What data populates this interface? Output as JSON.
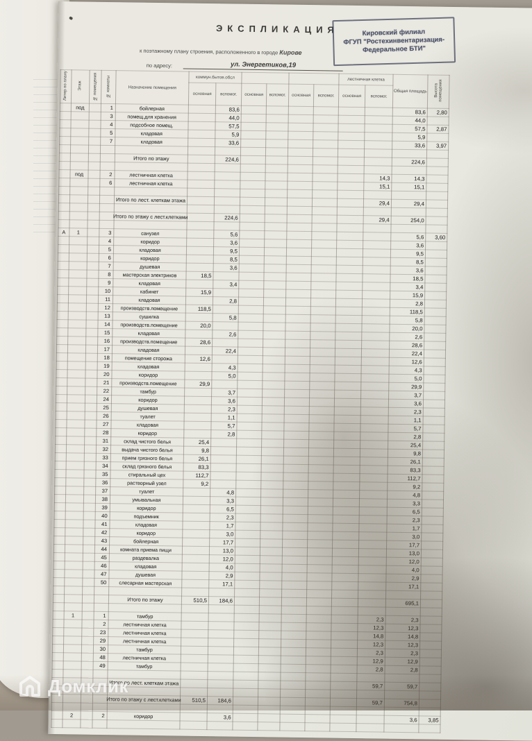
{
  "header": {
    "title": "ЭКСПЛИКАЦИЯ",
    "stamp": {
      "line1": "Кировский филиал",
      "line2": "ФГУП \"Ростехинвентаризация-",
      "line3": "Федеральное БТИ\""
    },
    "subtitle_prefix": "к поэтажному плану строения, расположенного в городе",
    "subtitle_city": "Кирове",
    "address_label": "по адресу:",
    "address_value": "ул. Энергетиков,19"
  },
  "watermark": {
    "label": "Домклик",
    "icon": "house-logo-icon"
  },
  "table": {
    "col_headers": {
      "liter": "Литер по плану",
      "floor": "Этаж",
      "room_no": "№ помещения",
      "unit_no": "№ комнаты",
      "purpose": "Назначение помещения",
      "group1": "коммун.бытов.обсл",
      "group2": "",
      "group3": "",
      "group4": "лестничная клетка",
      "main": "основная",
      "aux": "вспомог.",
      "total": "Общая площадь",
      "height": "Высота помещения"
    },
    "rows": [
      [
        "",
        "под",
        "",
        "1",
        "бойлерная",
        "",
        "83,6",
        "",
        "",
        "",
        "",
        "",
        "",
        "83,6",
        "2,80"
      ],
      [
        "",
        "",
        "",
        "3",
        "помещ.для хранения",
        "",
        "44,0",
        "",
        "",
        "",
        "",
        "",
        "",
        "44,0",
        ""
      ],
      [
        "",
        "",
        "",
        "4",
        "подсобное помещ.",
        "",
        "57,5",
        "",
        "",
        "",
        "",
        "",
        "",
        "57,5",
        "2,87"
      ],
      [
        "",
        "",
        "",
        "5",
        "кладовая",
        "",
        "5,9",
        "",
        "",
        "",
        "",
        "",
        "",
        "5,9",
        ""
      ],
      [
        "",
        "",
        "",
        "7",
        "кладовая",
        "",
        "33,6",
        "",
        "",
        "",
        "",
        "",
        "",
        "33,6",
        "3,97"
      ],
      [],
      [
        "",
        "",
        "",
        "",
        "Итого по этажу",
        "",
        "224,6",
        "",
        "",
        "",
        "",
        "",
        "",
        "224,6",
        ""
      ],
      [],
      [
        "",
        "под",
        "",
        "2",
        "лестничная клетка",
        "",
        "",
        "",
        "",
        "",
        "",
        "",
        "14,3",
        "14,3",
        ""
      ],
      [
        "",
        "",
        "",
        "6",
        "лестничная клетка",
        "",
        "",
        "",
        "",
        "",
        "",
        "",
        "15,1",
        "15,1",
        ""
      ],
      [],
      [
        "",
        "",
        "",
        "",
        "Итого по лест. клеткам этажа",
        "",
        "",
        "",
        "",
        "",
        "",
        "",
        "29,4",
        "29,4",
        ""
      ],
      [],
      [
        "",
        "",
        "",
        "",
        "Итого по этажу с лест.клетками",
        "",
        "224,6",
        "",
        "",
        "",
        "",
        "",
        "29,4",
        "254,0",
        ""
      ],
      [],
      [
        "А",
        "1",
        "",
        "3",
        "санузел",
        "",
        "5,6",
        "",
        "",
        "",
        "",
        "",
        "",
        "5,6",
        "3,60"
      ],
      [
        "",
        "",
        "",
        "4",
        "коридор",
        "",
        "3,6",
        "",
        "",
        "",
        "",
        "",
        "",
        "3,6",
        ""
      ],
      [
        "",
        "",
        "",
        "5",
        "кладовая",
        "",
        "9,5",
        "",
        "",
        "",
        "",
        "",
        "",
        "9,5",
        ""
      ],
      [
        "",
        "",
        "",
        "6",
        "коридор",
        "",
        "8,5",
        "",
        "",
        "",
        "",
        "",
        "",
        "8,5",
        ""
      ],
      [
        "",
        "",
        "",
        "7",
        "душевая",
        "",
        "3,6",
        "",
        "",
        "",
        "",
        "",
        "",
        "3,6",
        ""
      ],
      [
        "",
        "",
        "",
        "8",
        "мастерская электриков",
        "18,5",
        "",
        "",
        "",
        "",
        "",
        "",
        "",
        "18,5",
        ""
      ],
      [
        "",
        "",
        "",
        "9",
        "кладовая",
        "",
        "3,4",
        "",
        "",
        "",
        "",
        "",
        "",
        "3,4",
        ""
      ],
      [
        "",
        "",
        "",
        "10",
        "кабинет",
        "15,9",
        "",
        "",
        "",
        "",
        "",
        "",
        "",
        "15,9",
        ""
      ],
      [
        "",
        "",
        "",
        "11",
        "кладовая",
        "",
        "2,8",
        "",
        "",
        "",
        "",
        "",
        "",
        "2,8",
        ""
      ],
      [
        "",
        "",
        "",
        "12",
        "производств.помещение",
        "118,5",
        "",
        "",
        "",
        "",
        "",
        "",
        "",
        "118,5",
        ""
      ],
      [
        "",
        "",
        "",
        "13",
        "сушилка",
        "",
        "5,8",
        "",
        "",
        "",
        "",
        "",
        "",
        "5,8",
        ""
      ],
      [
        "",
        "",
        "",
        "14",
        "производств.помещение",
        "20,0",
        "",
        "",
        "",
        "",
        "",
        "",
        "",
        "20,0",
        ""
      ],
      [
        "",
        "",
        "",
        "15",
        "кладовая",
        "",
        "2,6",
        "",
        "",
        "",
        "",
        "",
        "",
        "2,6",
        ""
      ],
      [
        "",
        "",
        "",
        "16",
        "производств.помещение",
        "28,6",
        "",
        "",
        "",
        "",
        "",
        "",
        "",
        "28,6",
        ""
      ],
      [
        "",
        "",
        "",
        "17",
        "кладовая",
        "",
        "22,4",
        "",
        "",
        "",
        "",
        "",
        "",
        "22,4",
        ""
      ],
      [
        "",
        "",
        "",
        "18",
        "помещение сторожа",
        "12,6",
        "",
        "",
        "",
        "",
        "",
        "",
        "",
        "12,6",
        ""
      ],
      [
        "",
        "",
        "",
        "19",
        "кладовая",
        "",
        "4,3",
        "",
        "",
        "",
        "",
        "",
        "",
        "4,3",
        ""
      ],
      [
        "",
        "",
        "",
        "20",
        "коридор",
        "",
        "5,0",
        "",
        "",
        "",
        "",
        "",
        "",
        "5,0",
        ""
      ],
      [
        "",
        "",
        "",
        "21",
        "производств.помещение",
        "29,9",
        "",
        "",
        "",
        "",
        "",
        "",
        "",
        "29,9",
        ""
      ],
      [
        "",
        "",
        "",
        "22",
        "тамбур",
        "",
        "3,7",
        "",
        "",
        "",
        "",
        "",
        "",
        "3,7",
        ""
      ],
      [
        "",
        "",
        "",
        "24",
        "коридор",
        "",
        "3,6",
        "",
        "",
        "",
        "",
        "",
        "",
        "3,6",
        ""
      ],
      [
        "",
        "",
        "",
        "25",
        "душевая",
        "",
        "2,3",
        "",
        "",
        "",
        "",
        "",
        "",
        "2,3",
        ""
      ],
      [
        "",
        "",
        "",
        "26",
        "туалет",
        "",
        "1,1",
        "",
        "",
        "",
        "",
        "",
        "",
        "1,1",
        ""
      ],
      [
        "",
        "",
        "",
        "27",
        "кладовая",
        "",
        "5,7",
        "",
        "",
        "",
        "",
        "",
        "",
        "5,7",
        ""
      ],
      [
        "",
        "",
        "",
        "28",
        "коридор",
        "",
        "2,8",
        "",
        "",
        "",
        "",
        "",
        "",
        "2,8",
        ""
      ],
      [
        "",
        "",
        "",
        "31",
        "склад чистого белья",
        "25,4",
        "",
        "",
        "",
        "",
        "",
        "",
        "",
        "25,4",
        ""
      ],
      [
        "",
        "",
        "",
        "32",
        "выдача чистого белья",
        "9,8",
        "",
        "",
        "",
        "",
        "",
        "",
        "",
        "9,8",
        ""
      ],
      [
        "",
        "",
        "",
        "33",
        "прием грязного белья",
        "26,1",
        "",
        "",
        "",
        "",
        "",
        "",
        "",
        "26,1",
        ""
      ],
      [
        "",
        "",
        "",
        "34",
        "склад грязного белья",
        "83,3",
        "",
        "",
        "",
        "",
        "",
        "",
        "",
        "83,3",
        ""
      ],
      [
        "",
        "",
        "",
        "35",
        "стиральный цех",
        "112,7",
        "",
        "",
        "",
        "",
        "",
        "",
        "",
        "112,7",
        ""
      ],
      [
        "",
        "",
        "",
        "36",
        "растворный узел",
        "9,2",
        "",
        "",
        "",
        "",
        "",
        "",
        "",
        "9,2",
        ""
      ],
      [
        "",
        "",
        "",
        "37",
        "туалет",
        "",
        "4,8",
        "",
        "",
        "",
        "",
        "",
        "",
        "4,8",
        ""
      ],
      [
        "",
        "",
        "",
        "38",
        "умывальная",
        "",
        "3,3",
        "",
        "",
        "",
        "",
        "",
        "",
        "3,3",
        ""
      ],
      [
        "",
        "",
        "",
        "39",
        "коридор",
        "",
        "6,5",
        "",
        "",
        "",
        "",
        "",
        "",
        "6,5",
        ""
      ],
      [
        "",
        "",
        "",
        "40",
        "подъемник",
        "",
        "2,3",
        "",
        "",
        "",
        "",
        "",
        "",
        "2,3",
        ""
      ],
      [
        "",
        "",
        "",
        "41",
        "кладовая",
        "",
        "1,7",
        "",
        "",
        "",
        "",
        "",
        "",
        "1,7",
        ""
      ],
      [
        "",
        "",
        "",
        "42",
        "коридор",
        "",
        "3,0",
        "",
        "",
        "",
        "",
        "",
        "",
        "3,0",
        ""
      ],
      [
        "",
        "",
        "",
        "43",
        "бойлерная",
        "",
        "17,7",
        "",
        "",
        "",
        "",
        "",
        "",
        "17,7",
        ""
      ],
      [
        "",
        "",
        "",
        "44",
        "комната приема пищи",
        "",
        "13,0",
        "",
        "",
        "",
        "",
        "",
        "",
        "13,0",
        ""
      ],
      [
        "",
        "",
        "",
        "45",
        "раздевалка",
        "",
        "12,0",
        "",
        "",
        "",
        "",
        "",
        "",
        "12,0",
        ""
      ],
      [
        "",
        "",
        "",
        "46",
        "кладовая",
        "",
        "4,0",
        "",
        "",
        "",
        "",
        "",
        "",
        "4,0",
        ""
      ],
      [
        "",
        "",
        "",
        "47",
        "душевая",
        "",
        "2,9",
        "",
        "",
        "",
        "",
        "",
        "",
        "2,9",
        ""
      ],
      [
        "",
        "",
        "",
        "50",
        "слесарная мастерская",
        "",
        "17,1",
        "",
        "",
        "",
        "",
        "",
        "",
        "17,1",
        ""
      ],
      [],
      [
        "",
        "",
        "",
        "",
        "Итого по этажу",
        "510,5",
        "184,6",
        "",
        "",
        "",
        "",
        "",
        "",
        "695,1",
        ""
      ],
      [],
      [
        "",
        "1",
        "",
        "1",
        "тамбур",
        "",
        "",
        "",
        "",
        "",
        "",
        "",
        "2,3",
        "2,3",
        ""
      ],
      [
        "",
        "",
        "",
        "2",
        "лестничная клетка",
        "",
        "",
        "",
        "",
        "",
        "",
        "",
        "12,3",
        "12,3",
        ""
      ],
      [
        "",
        "",
        "",
        "23",
        "лестничная клетка",
        "",
        "",
        "",
        "",
        "",
        "",
        "",
        "14,8",
        "14,8",
        ""
      ],
      [
        "",
        "",
        "",
        "29",
        "лестничная клетка",
        "",
        "",
        "",
        "",
        "",
        "",
        "",
        "12,3",
        "12,3",
        ""
      ],
      [
        "",
        "",
        "",
        "30",
        "тамбур",
        "",
        "",
        "",
        "",
        "",
        "",
        "",
        "2,3",
        "2,3",
        ""
      ],
      [
        "",
        "",
        "",
        "48",
        "лестничная клетка",
        "",
        "",
        "",
        "",
        "",
        "",
        "",
        "12,9",
        "12,9",
        ""
      ],
      [
        "",
        "",
        "",
        "49",
        "тамбур",
        "",
        "",
        "",
        "",
        "",
        "",
        "",
        "2,8",
        "2,8",
        ""
      ],
      [],
      [
        "",
        "",
        "",
        "",
        "Итого по лест. клеткам этажа",
        "",
        "",
        "",
        "",
        "",
        "",
        "",
        "59,7",
        "59,7",
        ""
      ],
      [],
      [
        "",
        "",
        "",
        "",
        "Итого по этажу с лест.клетками",
        "510,5",
        "184,6",
        "",
        "",
        "",
        "",
        "",
        "59,7",
        "754,8",
        ""
      ],
      [],
      [
        "",
        "2",
        "",
        "2",
        "коридор",
        "",
        "3,6",
        "",
        "",
        "",
        "",
        "",
        "",
        "3,6",
        "3,85"
      ],
      []
    ]
  }
}
